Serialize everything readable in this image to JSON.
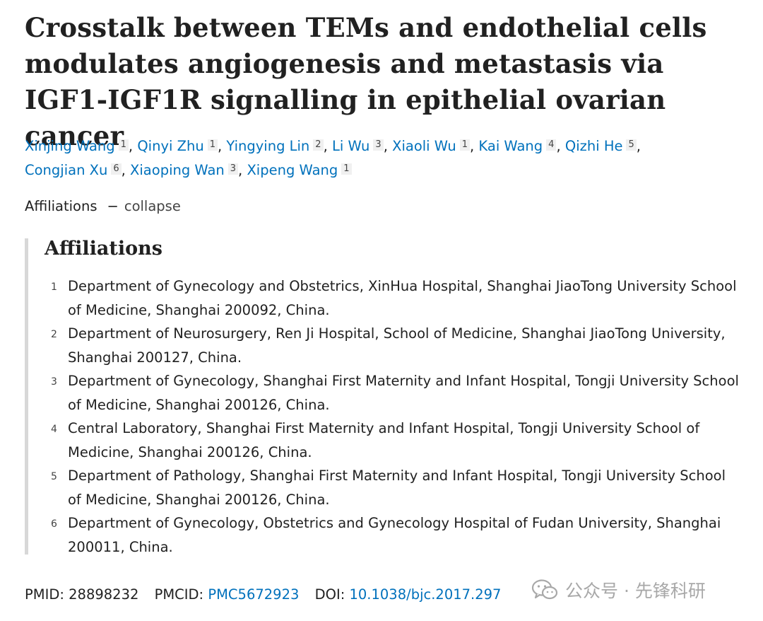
{
  "title": "Crosstalk between TEMs and endothelial cells modulates angiogenesis and metastasis via IGF1-IGF1R signalling in epithelial ovarian cancer",
  "authors": [
    {
      "name": "Xinjing Wang",
      "aff": "1"
    },
    {
      "name": "Qinyi Zhu",
      "aff": "1"
    },
    {
      "name": "Yingying Lin",
      "aff": "2"
    },
    {
      "name": "Li Wu",
      "aff": "3"
    },
    {
      "name": "Xiaoli Wu",
      "aff": "1"
    },
    {
      "name": "Kai Wang",
      "aff": "4"
    },
    {
      "name": "Qizhi He",
      "aff": "5"
    },
    {
      "name": "Congjian Xu",
      "aff": "6"
    },
    {
      "name": "Xiaoping Wan",
      "aff": "3"
    },
    {
      "name": "Xipeng Wang",
      "aff": "1"
    }
  ],
  "affiliations_toggle": {
    "label": "Affiliations",
    "dash": "−",
    "action": "collapse"
  },
  "affiliations": {
    "heading": "Affiliations",
    "items": [
      {
        "num": "1",
        "text": "Department of Gynecology and Obstetrics, XinHua Hospital, Shanghai JiaoTong University School of Medicine, Shanghai 200092, China."
      },
      {
        "num": "2",
        "text": "Department of Neurosurgery, Ren Ji Hospital, School of Medicine, Shanghai JiaoTong University, Shanghai 200127, China."
      },
      {
        "num": "3",
        "text": "Department of Gynecology, Shanghai First Maternity and Infant Hospital, Tongji University School of Medicine, Shanghai 200126, China."
      },
      {
        "num": "4",
        "text": "Central Laboratory, Shanghai First Maternity and Infant Hospital, Tongji University School of Medicine, Shanghai 200126, China."
      },
      {
        "num": "5",
        "text": "Department of Pathology, Shanghai First Maternity and Infant Hospital, Tongji University School of Medicine, Shanghai 200126, China."
      },
      {
        "num": "6",
        "text": "Department of Gynecology, Obstetrics and Gynecology Hospital of Fudan University, Shanghai 200011, China."
      }
    ]
  },
  "identifiers": {
    "pmid_label": "PMID:",
    "pmid": "28898232",
    "pmcid_label": "PMCID:",
    "pmcid": "PMC5672923",
    "doi_label": "DOI:",
    "doi": "10.1038/bjc.2017.297"
  },
  "watermark": {
    "text": "公众号 · 先锋科研",
    "icon": "wechat-icon"
  },
  "colors": {
    "link": "#0071bc",
    "text": "#212121",
    "border": "#d8d8d8",
    "watermark": "#9a9a9a"
  }
}
